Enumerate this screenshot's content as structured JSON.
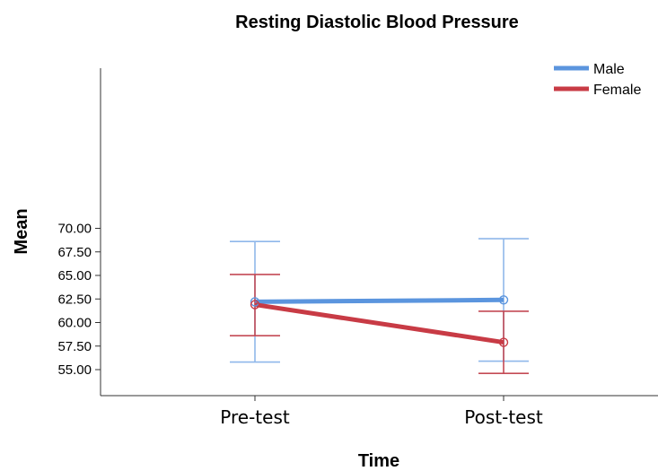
{
  "chart_data": {
    "type": "line",
    "title": "Resting Diastolic Blood Pressure",
    "xlabel": "Time",
    "ylabel": "Mean",
    "categories": [
      "Pre-test",
      "Post-test"
    ],
    "ylim": [
      54,
      71
    ],
    "yticks": [
      "55.00",
      "57.50",
      "60.00",
      "62.50",
      "65.00",
      "67.50",
      "70.00"
    ],
    "grid": false,
    "legend_position": "top-right",
    "error_bars": true,
    "series": [
      {
        "name": "Male",
        "color": "#5b95de",
        "errorbar_color": "#8fb7ea",
        "values": [
          62.2,
          62.4
        ],
        "lower": [
          55.8,
          55.9
        ],
        "upper": [
          68.6,
          68.9
        ]
      },
      {
        "name": "Female",
        "color": "#c83b45",
        "errorbar_color": "#c44a55",
        "values": [
          61.9,
          57.9
        ],
        "lower": [
          58.6,
          54.6
        ],
        "upper": [
          65.1,
          61.2
        ]
      }
    ]
  }
}
